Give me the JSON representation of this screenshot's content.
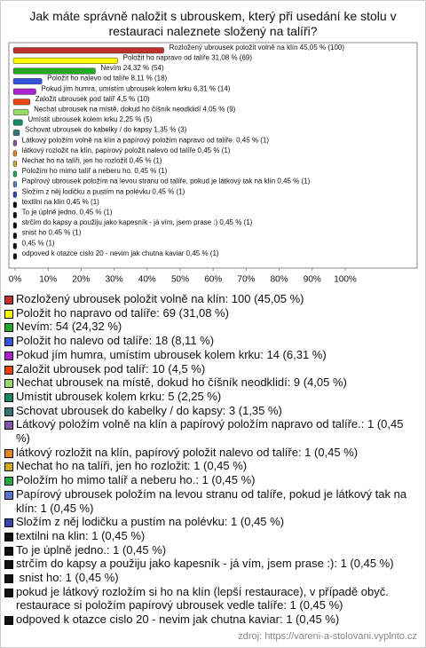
{
  "chart_data": {
    "type": "bar",
    "orientation": "horizontal",
    "title": "Jak máte správně naložit s ubrouskem, který při usedání ke stolu v restauraci naleznete složený na talíři?",
    "values": [
      45.05,
      31.08,
      24.32,
      8.11,
      6.31,
      4.5,
      4.05,
      2.25,
      1.35,
      0.45,
      0.45,
      0.45,
      0.45,
      0.45,
      0.45,
      0.45,
      0.45,
      0.45,
      0.45,
      0.45,
      0.45
    ],
    "value_labels": [
      "Rozložený ubrousek položit volně na klín 45,05 % (100)",
      "Položit ho napravo od talíře 31,08 % (69)",
      "Nevím 24,32 % (54)",
      "Položit ho nalevo od talíře 8,11 % (18)",
      "Pokud jím humra, umístím ubrousek kolem krku 6,31 % (14)",
      "Založit ubrousek pod talíř 4,5 % (10)",
      "Nechat ubrousek na místě, dokud ho číšník neodklidí 4,05 % (9)",
      "Umístit ubrousek kolem krku 2,25 % (5)",
      "Schovat ubrousek do kabelky / do kapsy 1,35 % (3)",
      "Látkový položím volně na klín a papírový položím napravo od talíře. 0,45 % (1)",
      "látkový rozložit na klín, papírový položit nalevo od talíře 0,45 % (1)",
      "Nechat ho na talíři, jen ho rozložit 0,45 % (1)",
      "Položím ho mimo talíř a neberu ho. 0,45 % (1)",
      "Papírový ubrousek položím na levou stranu od talíře, pokud je látkový tak na klín 0,45 % (1)",
      "Složím z něj lodičku a pustím na polévku 0,45 % (1)",
      "textilni na klin 0,45 % (1)",
      "To je úplně jedno. 0,45 % (1)",
      "strčím do kapsy a použiju jako kapesník - já vím, jsem prase :) 0,45 % (1)",
      " snist ho 0,45 % (1)",
      "0,45 % (1)",
      "odpoved k otazce cislo 20 - nevim jak chutna kaviar 0,45 % (1)"
    ],
    "legend": [
      "Rozložený ubrousek položit volně na klín: 100 (45,05 %)",
      "Položit ho napravo od talíře: 69 (31,08 %)",
      "Nevím: 54 (24,32 %)",
      "Položit ho nalevo od talíře: 18 (8,11 %)",
      "Pokud jím humra, umístím ubrousek kolem krku: 14 (6,31 %)",
      "Založit ubrousek pod talíř: 10 (4,5 %)",
      "Nechat ubrousek na místě, dokud ho číšník neodklidí: 9 (4,05 %)",
      "Umístit ubrousek kolem krku: 5 (2,25 %)",
      "Schovat ubrousek do kabelky / do kapsy: 3 (1,35 %)",
      "Látkový položím volně na klín a papírový položím napravo od talíře.: 1 (0,45 %)",
      "látkový rozložit na klín, papírový položit nalevo od talíře: 1 (0,45 %)",
      "Nechat ho na talíři, jen ho rozložit: 1 (0,45 %)",
      "Položím ho mimo talíř a neberu ho.: 1 (0,45 %)",
      "Papírový ubrousek položím na levou stranu od talíře, pokud je látkový tak na klín: 1 (0,45 %)",
      "Složím z něj lodičku a pustím na polévku: 1 (0,45 %)",
      "textilni na klin: 1 (0,45 %)",
      "To je úplně jedno.: 1 (0,45 %)",
      "strčím do kapsy a použiju jako kapesník - já vím, jsem prase :): 1 (0,45 %)",
      " snist ho: 1 (0,45 %)",
      "pokud je látkový rozložím si ho na klín (lepší restaurace), v případě obyč. restaurace si položím papírový ubrousek vedle talíře: 1 (0,45 %)",
      "odpoved k otazce cislo 20 - nevim jak chutna kaviar: 1 (0,45 %)"
    ],
    "colors": [
      "#c0302a",
      "#ffff00",
      "#22aa22",
      "#3355dd",
      "#aa22cc",
      "#ee4411",
      "#99dd66",
      "#118866",
      "#337777",
      "#8855aa",
      "#dd8822",
      "#ccaa22",
      "#22aa44",
      "#5577cc",
      "#3344aa",
      "#111111",
      "#111111",
      "#111111",
      "#111111",
      "#111111",
      "#111111"
    ],
    "xlim": [
      0,
      100
    ],
    "xticks": [
      {
        "value": 0,
        "label": "0%"
      },
      {
        "value": 10,
        "label": "10%"
      },
      {
        "value": 20,
        "label": "20%"
      },
      {
        "value": 30,
        "label": "30%"
      },
      {
        "value": 40,
        "label": "40%"
      },
      {
        "value": 50,
        "label": "50%"
      },
      {
        "value": 60,
        "label": "60%"
      },
      {
        "value": 70,
        "label": "70%"
      },
      {
        "value": 80,
        "label": "80%"
      },
      {
        "value": 90,
        "label": "90%"
      },
      {
        "value": 100,
        "label": "100%"
      }
    ],
    "source": "zdroj: https://vareni-a-stolovani.vyplnto.cz"
  }
}
